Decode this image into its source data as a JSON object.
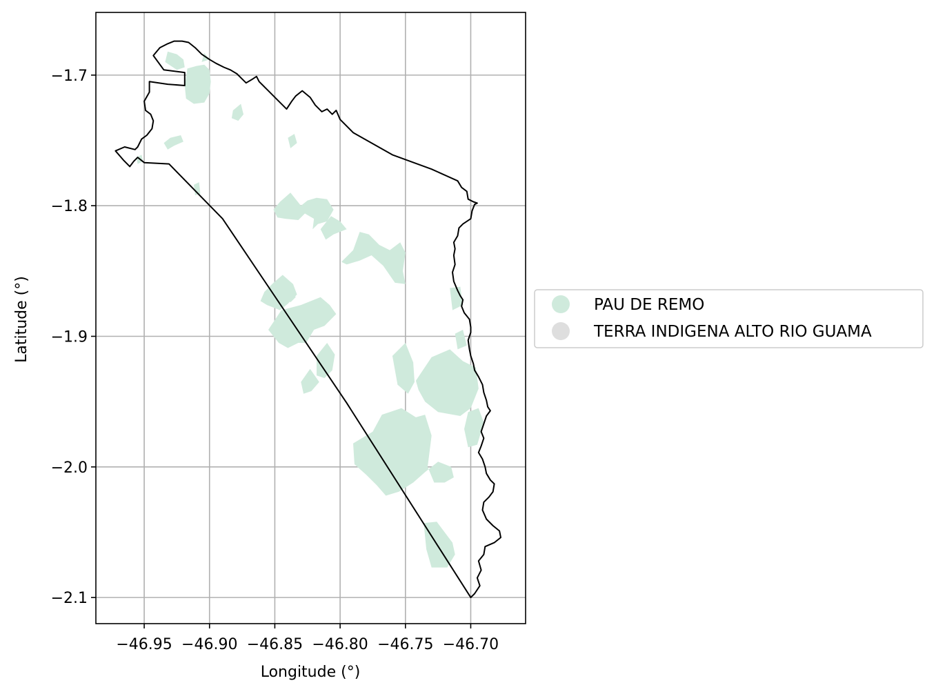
{
  "chart_data": {
    "type": "map",
    "xlabel": "Longitude (°)",
    "ylabel": "Latitude (°)",
    "xlim": [
      -46.987,
      -46.658
    ],
    "ylim": [
      -2.12,
      -1.652
    ],
    "grid": true,
    "x_ticks": [
      {
        "value": -46.95,
        "label": "−46.95"
      },
      {
        "value": -46.9,
        "label": "−46.90"
      },
      {
        "value": -46.85,
        "label": "−46.85"
      },
      {
        "value": -46.8,
        "label": "−46.80"
      },
      {
        "value": -46.75,
        "label": "−46.75"
      },
      {
        "value": -46.7,
        "label": "−46.70"
      }
    ],
    "y_ticks": [
      {
        "value": -1.7,
        "label": "−1.7"
      },
      {
        "value": -1.8,
        "label": "−1.8"
      },
      {
        "value": -1.9,
        "label": "−1.9"
      },
      {
        "value": -2.0,
        "label": "−2.0"
      },
      {
        "value": -2.1,
        "label": "−2.1"
      }
    ],
    "legend": {
      "placement": "center-left outside",
      "entries": [
        {
          "label": "PAU DE REMO",
          "color": "#cfeadc"
        },
        {
          "label": "TERRA INDIGENA ALTO RIO GUAMA",
          "color": "#dedede"
        }
      ]
    },
    "boundary": {
      "stroke": "#000000",
      "coords": [
        [
          -46.943,
          -1.685
        ],
        [
          -46.938,
          -1.679
        ],
        [
          -46.932,
          -1.676
        ],
        [
          -46.927,
          -1.674
        ],
        [
          -46.921,
          -1.674
        ],
        [
          -46.916,
          -1.675
        ],
        [
          -46.911,
          -1.679
        ],
        [
          -46.906,
          -1.684
        ],
        [
          -46.9,
          -1.688
        ],
        [
          -46.895,
          -1.691
        ],
        [
          -46.889,
          -1.694
        ],
        [
          -46.884,
          -1.696
        ],
        [
          -46.879,
          -1.699
        ],
        [
          -46.875,
          -1.703
        ],
        [
          -46.872,
          -1.706
        ],
        [
          -46.867,
          -1.703
        ],
        [
          -46.864,
          -1.701
        ],
        [
          -46.862,
          -1.705
        ],
        [
          -46.855,
          -1.712
        ],
        [
          -46.848,
          -1.719
        ],
        [
          -46.841,
          -1.726
        ],
        [
          -46.837,
          -1.72
        ],
        [
          -46.834,
          -1.716
        ],
        [
          -46.829,
          -1.712
        ],
        [
          -46.823,
          -1.717
        ],
        [
          -46.819,
          -1.723
        ],
        [
          -46.814,
          -1.728
        ],
        [
          -46.81,
          -1.726
        ],
        [
          -46.806,
          -1.73
        ],
        [
          -46.803,
          -1.727
        ],
        [
          -46.8,
          -1.734
        ],
        [
          -46.79,
          -1.744
        ],
        [
          -46.76,
          -1.761
        ],
        [
          -46.73,
          -1.772
        ],
        [
          -46.71,
          -1.781
        ],
        [
          -46.707,
          -1.786
        ],
        [
          -46.703,
          -1.789
        ],
        [
          -46.702,
          -1.795
        ],
        [
          -46.698,
          -1.797
        ],
        [
          -46.695,
          -1.798
        ],
        [
          -46.697,
          -1.799
        ],
        [
          -46.699,
          -1.804
        ],
        [
          -46.7,
          -1.81
        ],
        [
          -46.706,
          -1.814
        ],
        [
          -46.709,
          -1.817
        ],
        [
          -46.71,
          -1.823
        ],
        [
          -46.713,
          -1.828
        ],
        [
          -46.712,
          -1.833
        ],
        [
          -46.713,
          -1.838
        ],
        [
          -46.712,
          -1.845
        ],
        [
          -46.714,
          -1.851
        ],
        [
          -46.713,
          -1.858
        ],
        [
          -46.71,
          -1.865
        ],
        [
          -46.708,
          -1.869
        ],
        [
          -46.706,
          -1.872
        ],
        [
          -46.707,
          -1.877
        ],
        [
          -46.705,
          -1.882
        ],
        [
          -46.701,
          -1.887
        ],
        [
          -46.7,
          -1.893
        ],
        [
          -46.7,
          -1.897
        ],
        [
          -46.702,
          -1.903
        ],
        [
          -46.701,
          -1.91
        ],
        [
          -46.7,
          -1.915
        ],
        [
          -46.698,
          -1.921
        ],
        [
          -46.697,
          -1.926
        ],
        [
          -46.694,
          -1.931
        ],
        [
          -46.691,
          -1.937
        ],
        [
          -46.69,
          -1.943
        ],
        [
          -46.688,
          -1.949
        ],
        [
          -46.687,
          -1.954
        ],
        [
          -46.685,
          -1.957
        ],
        [
          -46.688,
          -1.961
        ],
        [
          -46.69,
          -1.967
        ],
        [
          -46.692,
          -1.973
        ],
        [
          -46.69,
          -1.978
        ],
        [
          -46.692,
          -1.984
        ],
        [
          -46.694,
          -1.989
        ],
        [
          -46.691,
          -1.994
        ],
        [
          -46.689,
          -2.0
        ],
        [
          -46.688,
          -2.005
        ],
        [
          -46.685,
          -2.01
        ],
        [
          -46.682,
          -2.013
        ],
        [
          -46.683,
          -2.019
        ],
        [
          -46.686,
          -2.023
        ],
        [
          -46.69,
          -2.027
        ],
        [
          -46.691,
          -2.033
        ],
        [
          -46.688,
          -2.04
        ],
        [
          -46.683,
          -2.045
        ],
        [
          -46.678,
          -2.049
        ],
        [
          -46.677,
          -2.054
        ],
        [
          -46.682,
          -2.058
        ],
        [
          -46.689,
          -2.061
        ],
        [
          -46.69,
          -2.067
        ],
        [
          -46.694,
          -2.072
        ],
        [
          -46.692,
          -2.079
        ],
        [
          -46.695,
          -2.085
        ],
        [
          -46.693,
          -2.091
        ],
        [
          -46.697,
          -2.097
        ],
        [
          -46.7,
          -2.1
        ],
        [
          -46.795,
          -1.951
        ],
        [
          -46.89,
          -1.81
        ],
        [
          -46.931,
          -1.768
        ],
        [
          -46.95,
          -1.767
        ],
        [
          -46.955,
          -1.763
        ],
        [
          -46.958,
          -1.766
        ],
        [
          -46.961,
          -1.77
        ],
        [
          -46.966,
          -1.765
        ],
        [
          -46.972,
          -1.758
        ],
        [
          -46.965,
          -1.755
        ],
        [
          -46.957,
          -1.757
        ],
        [
          -46.955,
          -1.755
        ],
        [
          -46.952,
          -1.749
        ],
        [
          -46.948,
          -1.746
        ],
        [
          -46.944,
          -1.741
        ],
        [
          -46.943,
          -1.735
        ],
        [
          -46.945,
          -1.73
        ],
        [
          -46.949,
          -1.727
        ],
        [
          -46.95,
          -1.72
        ],
        [
          -46.946,
          -1.713
        ],
        [
          -46.946,
          -1.705
        ],
        [
          -46.932,
          -1.707
        ],
        [
          -46.919,
          -1.708
        ],
        [
          -46.919,
          -1.698
        ],
        [
          -46.935,
          -1.696
        ],
        [
          -46.943,
          -1.685
        ]
      ]
    },
    "pau_de_remo_patches": [
      [
        [
          -46.9,
          -1.696
        ],
        [
          -46.904,
          -1.692
        ],
        [
          -46.91,
          -1.693
        ],
        [
          -46.917,
          -1.695
        ],
        [
          -46.918,
          -1.702
        ],
        [
          -46.919,
          -1.708
        ],
        [
          -46.918,
          -1.718
        ],
        [
          -46.912,
          -1.722
        ],
        [
          -46.904,
          -1.721
        ],
        [
          -46.9,
          -1.714
        ],
        [
          -46.899,
          -1.705
        ]
      ],
      [
        [
          -46.92,
          -1.688
        ],
        [
          -46.925,
          -1.684
        ],
        [
          -46.932,
          -1.682
        ],
        [
          -46.934,
          -1.69
        ],
        [
          -46.925,
          -1.696
        ],
        [
          -46.919,
          -1.694
        ]
      ],
      [
        [
          -46.9,
          -1.688
        ],
        [
          -46.904,
          -1.683
        ],
        [
          -46.906,
          -1.69
        ]
      ],
      [
        [
          -46.882,
          -1.727
        ],
        [
          -46.876,
          -1.722
        ],
        [
          -46.874,
          -1.73
        ],
        [
          -46.878,
          -1.735
        ],
        [
          -46.883,
          -1.733
        ]
      ],
      [
        [
          -46.935,
          -1.752
        ],
        [
          -46.93,
          -1.748
        ],
        [
          -46.922,
          -1.746
        ],
        [
          -46.92,
          -1.751
        ],
        [
          -46.927,
          -1.754
        ],
        [
          -46.932,
          -1.757
        ]
      ],
      [
        [
          -46.912,
          -1.784
        ],
        [
          -46.908,
          -1.782
        ],
        [
          -46.907,
          -1.791
        ],
        [
          -46.911,
          -1.792
        ]
      ],
      [
        [
          -46.84,
          -1.748
        ],
        [
          -46.835,
          -1.745
        ],
        [
          -46.833,
          -1.752
        ],
        [
          -46.838,
          -1.756
        ]
      ],
      [
        [
          -46.851,
          -1.803
        ],
        [
          -46.846,
          -1.797
        ],
        [
          -46.838,
          -1.79
        ],
        [
          -46.83,
          -1.8
        ],
        [
          -46.825,
          -1.796
        ],
        [
          -46.818,
          -1.794
        ],
        [
          -46.81,
          -1.795
        ],
        [
          -46.805,
          -1.803
        ],
        [
          -46.81,
          -1.812
        ],
        [
          -46.817,
          -1.814
        ],
        [
          -46.821,
          -1.818
        ],
        [
          -46.82,
          -1.81
        ],
        [
          -46.827,
          -1.806
        ],
        [
          -46.832,
          -1.811
        ],
        [
          -46.842,
          -1.81
        ],
        [
          -46.848,
          -1.809
        ]
      ],
      [
        [
          -46.815,
          -1.818
        ],
        [
          -46.807,
          -1.808
        ],
        [
          -46.8,
          -1.812
        ],
        [
          -46.795,
          -1.818
        ],
        [
          -46.805,
          -1.822
        ],
        [
          -46.811,
          -1.826
        ]
      ],
      [
        [
          -46.79,
          -1.834
        ],
        [
          -46.785,
          -1.82
        ],
        [
          -46.778,
          -1.822
        ],
        [
          -46.77,
          -1.83
        ],
        [
          -46.762,
          -1.834
        ],
        [
          -46.754,
          -1.828
        ],
        [
          -46.75,
          -1.836
        ],
        [
          -46.752,
          -1.85
        ],
        [
          -46.75,
          -1.86
        ],
        [
          -46.758,
          -1.859
        ],
        [
          -46.767,
          -1.846
        ],
        [
          -46.776,
          -1.838
        ],
        [
          -46.785,
          -1.842
        ],
        [
          -46.795,
          -1.845
        ],
        [
          -46.799,
          -1.843
        ]
      ],
      [
        [
          -46.858,
          -1.866
        ],
        [
          -46.851,
          -1.859
        ],
        [
          -46.844,
          -1.853
        ],
        [
          -46.836,
          -1.86
        ],
        [
          -46.833,
          -1.868
        ],
        [
          -46.84,
          -1.875
        ],
        [
          -46.846,
          -1.88
        ],
        [
          -46.856,
          -1.876
        ],
        [
          -46.861,
          -1.873
        ]
      ],
      [
        [
          -46.855,
          -1.895
        ],
        [
          -46.845,
          -1.88
        ],
        [
          -46.83,
          -1.876
        ],
        [
          -46.815,
          -1.87
        ],
        [
          -46.808,
          -1.876
        ],
        [
          -46.803,
          -1.883
        ],
        [
          -46.812,
          -1.892
        ],
        [
          -46.82,
          -1.895
        ],
        [
          -46.826,
          -1.905
        ],
        [
          -46.832,
          -1.905
        ],
        [
          -46.84,
          -1.909
        ],
        [
          -46.847,
          -1.905
        ]
      ],
      [
        [
          -46.818,
          -1.915
        ],
        [
          -46.81,
          -1.905
        ],
        [
          -46.804,
          -1.914
        ],
        [
          -46.806,
          -1.926
        ],
        [
          -46.812,
          -1.932
        ],
        [
          -46.818,
          -1.93
        ]
      ],
      [
        [
          -46.83,
          -1.935
        ],
        [
          -46.823,
          -1.925
        ],
        [
          -46.816,
          -1.935
        ],
        [
          -46.822,
          -1.942
        ],
        [
          -46.828,
          -1.944
        ]
      ],
      [
        [
          -46.76,
          -1.915
        ],
        [
          -46.75,
          -1.905
        ],
        [
          -46.744,
          -1.92
        ],
        [
          -46.743,
          -1.935
        ],
        [
          -46.748,
          -1.944
        ],
        [
          -46.756,
          -1.937
        ]
      ],
      [
        [
          -46.742,
          -1.934
        ],
        [
          -46.73,
          -1.916
        ],
        [
          -46.716,
          -1.91
        ],
        [
          -46.706,
          -1.919
        ],
        [
          -46.696,
          -1.924
        ],
        [
          -46.694,
          -1.94
        ],
        [
          -46.7,
          -1.955
        ],
        [
          -46.708,
          -1.961
        ],
        [
          -46.725,
          -1.958
        ],
        [
          -46.735,
          -1.95
        ],
        [
          -46.74,
          -1.941
        ]
      ],
      [
        [
          -46.702,
          -1.958
        ],
        [
          -46.694,
          -1.955
        ],
        [
          -46.69,
          -1.966
        ],
        [
          -46.695,
          -1.983
        ],
        [
          -46.702,
          -1.985
        ],
        [
          -46.705,
          -1.971
        ]
      ],
      [
        [
          -46.79,
          -1.982
        ],
        [
          -46.775,
          -1.973
        ],
        [
          -46.768,
          -1.96
        ],
        [
          -46.753,
          -1.955
        ],
        [
          -46.742,
          -1.962
        ],
        [
          -46.735,
          -1.96
        ],
        [
          -46.73,
          -1.976
        ],
        [
          -46.733,
          -2.0
        ],
        [
          -46.728,
          -2.012
        ],
        [
          -46.72,
          -2.012
        ],
        [
          -46.713,
          -2.008
        ],
        [
          -46.715,
          -2.0
        ],
        [
          -46.725,
          -1.996
        ],
        [
          -46.735,
          -2.004
        ],
        [
          -46.744,
          -2.012
        ],
        [
          -46.755,
          -2.019
        ],
        [
          -46.765,
          -2.022
        ],
        [
          -46.772,
          -2.014
        ],
        [
          -46.78,
          -2.006
        ],
        [
          -46.789,
          -1.998
        ]
      ],
      [
        [
          -46.736,
          -2.043
        ],
        [
          -46.726,
          -2.042
        ],
        [
          -46.714,
          -2.058
        ],
        [
          -46.712,
          -2.067
        ],
        [
          -46.718,
          -2.077
        ],
        [
          -46.73,
          -2.077
        ],
        [
          -46.734,
          -2.063
        ]
      ],
      [
        [
          -46.716,
          -1.863
        ],
        [
          -46.708,
          -1.862
        ],
        [
          -46.706,
          -1.876
        ],
        [
          -46.714,
          -1.88
        ]
      ],
      [
        [
          -46.712,
          -1.898
        ],
        [
          -46.706,
          -1.895
        ],
        [
          -46.703,
          -1.907
        ],
        [
          -46.71,
          -1.91
        ]
      ],
      [
        [
          -46.842,
          -1.868
        ],
        [
          -46.838,
          -1.862
        ],
        [
          -46.834,
          -1.87
        ],
        [
          -46.838,
          -1.874
        ]
      ],
      [
        [
          -46.956,
          -1.763
        ],
        [
          -46.952,
          -1.761
        ],
        [
          -46.951,
          -1.766
        ],
        [
          -46.955,
          -1.768
        ]
      ]
    ]
  }
}
